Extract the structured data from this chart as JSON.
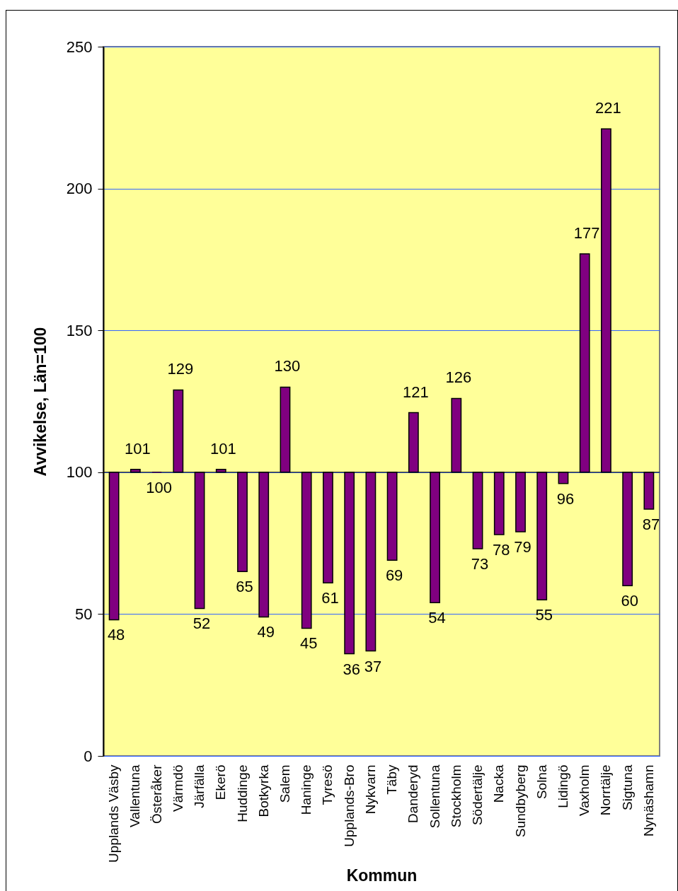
{
  "chart_data": {
    "type": "bar",
    "xlabel": "Kommun",
    "ylabel": "Avvikelse, Län=100",
    "categories": [
      "Upplands Väsby",
      "Vallentuna",
      "Österåker",
      "Värmdö",
      "Järfälla",
      "Ekerö",
      "Huddinge",
      "Botkyrka",
      "Salem",
      "Haninge",
      "Tyresö",
      "Upplands-Bro",
      "Nykvarn",
      "Täby",
      "Danderyd",
      "Sollentuna",
      "Stockholm",
      "Södertälje",
      "Nacka",
      "Sundbyberg",
      "Solna",
      "Lidingö",
      "Vaxholm",
      "Norrtälje",
      "Sigtuna",
      "Nynäshamn"
    ],
    "base": [
      100,
      100,
      100,
      100,
      100,
      100,
      100,
      100,
      100,
      100,
      100,
      100,
      100,
      100,
      100,
      100,
      100,
      100,
      100,
      100,
      100,
      100,
      100,
      100,
      100,
      100
    ],
    "values": [
      -52,
      1,
      0,
      29,
      -48,
      1,
      -35,
      -51,
      30,
      -55,
      -39,
      -64,
      -63,
      -31,
      21,
      -46,
      26,
      -27,
      -22,
      -21,
      -45,
      -4,
      77,
      121,
      -40,
      -13
    ],
    "value_labels": [
      "48",
      "101",
      "100",
      "129",
      "52",
      "101",
      "65",
      "49",
      "130",
      "45",
      "61",
      "36",
      "37",
      "69",
      "121",
      "54",
      "126",
      "73",
      "78",
      "79",
      "55",
      "96",
      "177",
      "221",
      "60",
      "87"
    ],
    "color": "#800080",
    "ylim": [
      0,
      250
    ],
    "yticks": [
      0,
      50,
      100,
      150,
      200,
      250
    ],
    "grid": "y",
    "ref_lines": [
      {
        "axis": "y",
        "value": 100,
        "color": "#000000"
      }
    ]
  }
}
